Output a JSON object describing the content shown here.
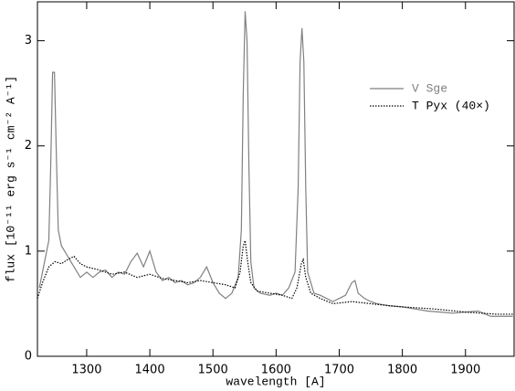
{
  "chart_data": {
    "type": "line",
    "xlabel": "wavelength [A]",
    "ylabel": "flux [10⁻¹¹ erg s⁻¹ cm⁻² A⁻¹]",
    "xlim": [
      1222,
      1977
    ],
    "ylim": [
      0,
      3.37
    ],
    "xticks": [
      1300,
      1400,
      1500,
      1600,
      1700,
      1800,
      1900
    ],
    "yticks": [
      0,
      1,
      2,
      3
    ],
    "legend": "upper right",
    "series": [
      {
        "name": "V Sge",
        "color": "#808080",
        "dash": "solid",
        "x": [
          1225,
          1230,
          1235,
          1240,
          1243,
          1246,
          1249,
          1252,
          1255,
          1260,
          1265,
          1270,
          1275,
          1280,
          1290,
          1300,
          1310,
          1320,
          1330,
          1340,
          1350,
          1360,
          1370,
          1380,
          1390,
          1400,
          1410,
          1420,
          1430,
          1440,
          1450,
          1460,
          1470,
          1480,
          1490,
          1500,
          1510,
          1520,
          1530,
          1540,
          1545,
          1548,
          1551,
          1554,
          1557,
          1560,
          1565,
          1575,
          1590,
          1600,
          1610,
          1620,
          1630,
          1635,
          1638,
          1641,
          1644,
          1647,
          1650,
          1660,
          1670,
          1680,
          1690,
          1700,
          1710,
          1720,
          1725,
          1730,
          1740,
          1750,
          1760,
          1780,
          1800,
          1820,
          1840,
          1860,
          1880,
          1900,
          1920,
          1940,
          1960,
          1975
        ],
        "values": [
          0.65,
          0.8,
          0.95,
          1.1,
          1.8,
          2.7,
          2.7,
          1.9,
          1.2,
          1.05,
          1.0,
          0.95,
          0.9,
          0.85,
          0.75,
          0.8,
          0.75,
          0.8,
          0.82,
          0.75,
          0.8,
          0.78,
          0.9,
          0.98,
          0.85,
          1.0,
          0.8,
          0.72,
          0.75,
          0.7,
          0.72,
          0.68,
          0.7,
          0.75,
          0.85,
          0.7,
          0.6,
          0.55,
          0.6,
          0.75,
          1.2,
          2.5,
          3.28,
          3.0,
          1.8,
          0.9,
          0.65,
          0.6,
          0.58,
          0.6,
          0.58,
          0.65,
          0.8,
          1.6,
          2.8,
          3.12,
          2.8,
          1.6,
          0.8,
          0.6,
          0.58,
          0.55,
          0.52,
          0.55,
          0.58,
          0.7,
          0.72,
          0.6,
          0.55,
          0.52,
          0.5,
          0.48,
          0.47,
          0.45,
          0.43,
          0.42,
          0.41,
          0.42,
          0.43,
          0.38,
          0.38,
          0.38
        ]
      },
      {
        "name": "T Pyx (40×)",
        "color": "#000000",
        "dash": "dotted",
        "x": [
          1222,
          1230,
          1240,
          1250,
          1260,
          1270,
          1280,
          1290,
          1300,
          1320,
          1340,
          1360,
          1380,
          1400,
          1420,
          1440,
          1460,
          1480,
          1500,
          1520,
          1535,
          1543,
          1548,
          1551,
          1555,
          1560,
          1570,
          1590,
          1610,
          1625,
          1633,
          1640,
          1643,
          1647,
          1655,
          1670,
          1690,
          1720,
          1750,
          1780,
          1800,
          1850,
          1900,
          1950,
          1975
        ],
        "values": [
          0.55,
          0.7,
          0.85,
          0.9,
          0.88,
          0.92,
          0.95,
          0.88,
          0.85,
          0.82,
          0.78,
          0.8,
          0.75,
          0.78,
          0.74,
          0.72,
          0.7,
          0.72,
          0.7,
          0.68,
          0.65,
          0.8,
          1.05,
          1.1,
          0.9,
          0.7,
          0.62,
          0.6,
          0.58,
          0.55,
          0.65,
          0.88,
          0.92,
          0.75,
          0.6,
          0.55,
          0.5,
          0.52,
          0.5,
          0.48,
          0.47,
          0.45,
          0.42,
          0.4,
          0.4
        ]
      }
    ]
  }
}
